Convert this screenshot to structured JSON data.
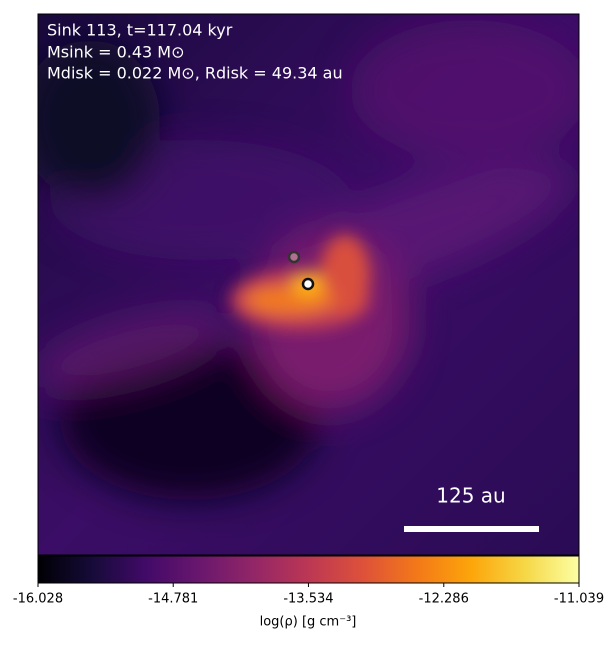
{
  "chart_data": {
    "type": "image",
    "annotations": [
      "Sink 113, t=117.04 kyr",
      "Msink = 0.43 M⊙",
      "Mdisk = 0.022 M⊙, Rdisk = 49.34 au"
    ],
    "scale_bar": "125 au",
    "colormap": "inferno",
    "colorbar": {
      "label": "log(ρ) [g cm⁻³]",
      "lim": [
        -16.028,
        -11.039
      ],
      "ticks": [
        -16.028,
        -14.781,
        -13.534,
        -12.286,
        -11.039
      ]
    }
  }
}
